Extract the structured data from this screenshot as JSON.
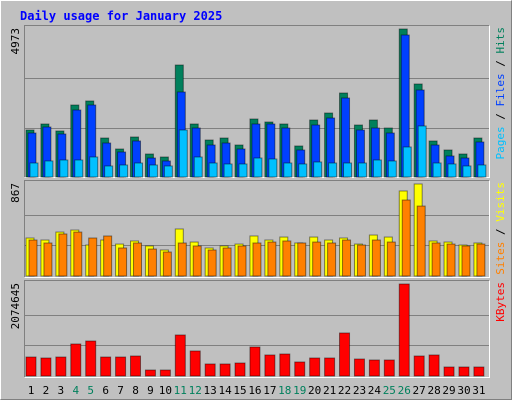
{
  "chart_data": [
    {
      "type": "bar",
      "title": "Daily usage for January 2025",
      "legend_separator": " / ",
      "ylim": [
        0,
        4973
      ],
      "yticks": [
        4973
      ],
      "series": [
        {
          "name": "Hits",
          "color": "#00805c",
          "values": [
            1579,
            1781,
            1546,
            2419,
            2554,
            1310,
            941,
            1344,
            773,
            672,
            3763,
            1781,
            1243,
            1310,
            1075,
            1949,
            1848,
            1781,
            1042,
            1915,
            2150,
            2822,
            1747,
            1915,
            1646,
            4973,
            3125,
            1210,
            907,
            773,
            1310
          ]
        },
        {
          "name": "Files",
          "color": "#0040ff",
          "values": [
            1478,
            1680,
            1445,
            2251,
            2419,
            1142,
            840,
            1210,
            638,
            538,
            2856,
            1646,
            1075,
            1142,
            941,
            1781,
            1781,
            1646,
            907,
            1747,
            1982,
            2654,
            1579,
            1646,
            1478,
            4771,
            2923,
            1075,
            706,
            638,
            1176
          ]
        },
        {
          "name": "Pages",
          "color": "#00c0ff",
          "values": [
            470,
            538,
            571,
            571,
            672,
            370,
            403,
            470,
            403,
            370,
            1579,
            672,
            470,
            437,
            437,
            638,
            605,
            470,
            437,
            504,
            470,
            470,
            470,
            571,
            538,
            1008,
            1714,
            470,
            437,
            370,
            403
          ]
        }
      ]
    },
    {
      "type": "bar",
      "legend_separator": " / ",
      "ylim": [
        0,
        867
      ],
      "yticks": [
        867
      ],
      "series": [
        {
          "name": "Visits",
          "color": "#ffff00",
          "values": [
            358,
            339,
            414,
            433,
            292,
            339,
            301,
            330,
            283,
            245,
            443,
            320,
            264,
            283,
            301,
            377,
            339,
            367,
            311,
            367,
            339,
            358,
            301,
            386,
            367,
            801,
            867,
            330,
            320,
            292,
            311
          ]
        },
        {
          "name": "Sites",
          "color": "#ff8000",
          "values": [
            339,
            311,
            396,
            414,
            358,
            377,
            264,
            311,
            254,
            226,
            311,
            283,
            245,
            264,
            283,
            311,
            320,
            330,
            311,
            320,
            311,
            339,
            292,
            339,
            320,
            716,
            659,
            311,
            301,
            283,
            301
          ]
        }
      ]
    },
    {
      "type": "bar",
      "ylim": [
        0,
        2074645
      ],
      "yticks": [
        2074645
      ],
      "categories": [
        "1",
        "2",
        "3",
        "4",
        "5",
        "6",
        "7",
        "8",
        "9",
        "10",
        "11",
        "12",
        "13",
        "14",
        "15",
        "16",
        "17",
        "18",
        "19",
        "20",
        "21",
        "22",
        "23",
        "24",
        "25",
        "26",
        "27",
        "28",
        "29",
        "30",
        "31"
      ],
      "category_colors": [
        "#000000",
        "#000000",
        "#000000",
        "#00805c",
        "#00805c",
        "#000000",
        "#000000",
        "#000000",
        "#000000",
        "#000000",
        "#00805c",
        "#00805c",
        "#000000",
        "#000000",
        "#000000",
        "#000000",
        "#000000",
        "#00805c",
        "#00805c",
        "#000000",
        "#000000",
        "#000000",
        "#000000",
        "#000000",
        "#00805c",
        "#00805c",
        "#000000",
        "#000000",
        "#000000",
        "#000000",
        "#000000"
      ],
      "series": [
        {
          "name": "KBytes",
          "color": "#ff0000",
          "values": [
            428000,
            406000,
            428000,
            722000,
            789000,
            428000,
            428000,
            451000,
            135000,
            135000,
            925000,
            564000,
            271000,
            271000,
            293000,
            654000,
            474000,
            496000,
            316000,
            406000,
            406000,
            970000,
            383000,
            361000,
            361000,
            2074645,
            451000,
            474000,
            203000,
            203000,
            203000
          ]
        }
      ]
    }
  ]
}
